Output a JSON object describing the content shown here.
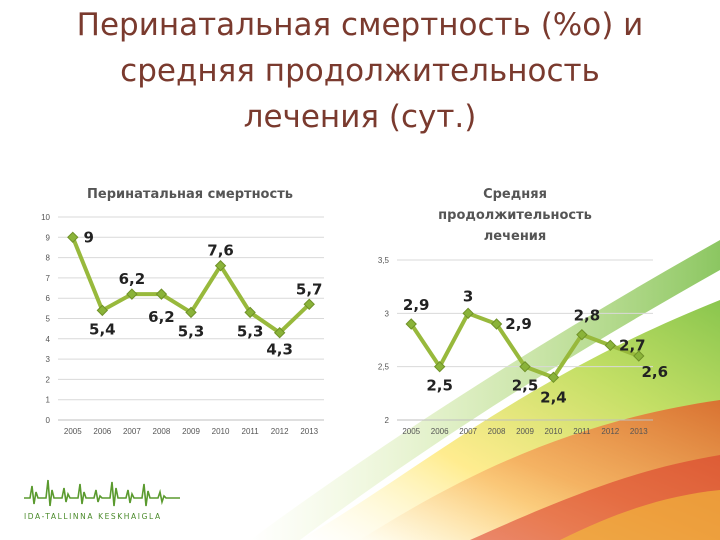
{
  "slide": {
    "title_lines": [
      "Перинатальная смертность (%о) и",
      "средняя продолжительность",
      "лечения (сут.)"
    ]
  },
  "logo": {
    "text": "IDA-TALLINNA KESKHAIGLA"
  },
  "colors": {
    "line": "#98b93c",
    "marker": "#8ab339",
    "marker_edge": "#6f9128",
    "title": "#7a3a2e",
    "grid": "#d9d9d9"
  },
  "chart_data": [
    {
      "type": "line",
      "title": "Перинатальная смертность",
      "categories": [
        "2005",
        "2006",
        "2007",
        "2008",
        "2009",
        "2010",
        "2011",
        "2012",
        "2013"
      ],
      "values": [
        9,
        5.4,
        6.2,
        6.2,
        5.3,
        7.6,
        5.3,
        4.3,
        5.7
      ],
      "data_labels": [
        "9",
        "5,4",
        "6,2",
        "6,2",
        "5,3",
        "7,6",
        "5,3",
        "4,3",
        "5,7"
      ],
      "y_ticks": [
        "0",
        "1",
        "2",
        "3",
        "4",
        "5",
        "6",
        "7",
        "8",
        "9",
        "10"
      ],
      "ylim": [
        0,
        10
      ],
      "grid": true
    },
    {
      "type": "line",
      "title": "Средняя продолжительность лечения",
      "title_lines": [
        "Средняя",
        "продолжительность",
        "лечения"
      ],
      "categories": [
        "2005",
        "2006",
        "2007",
        "2008",
        "2009",
        "2010",
        "2011",
        "2012",
        "2013"
      ],
      "values": [
        2.9,
        2.5,
        3,
        2.9,
        2.5,
        2.4,
        2.8,
        2.7,
        2.6
      ],
      "data_labels": [
        "2,9",
        "2,5",
        "3",
        "2,9",
        "2,5",
        "2,4",
        "2,8",
        "2,7",
        "2,6"
      ],
      "y_ticks": [
        "2",
        "2,5",
        "3",
        "3,5"
      ],
      "ylim": [
        2,
        3.5
      ],
      "grid": true
    }
  ]
}
